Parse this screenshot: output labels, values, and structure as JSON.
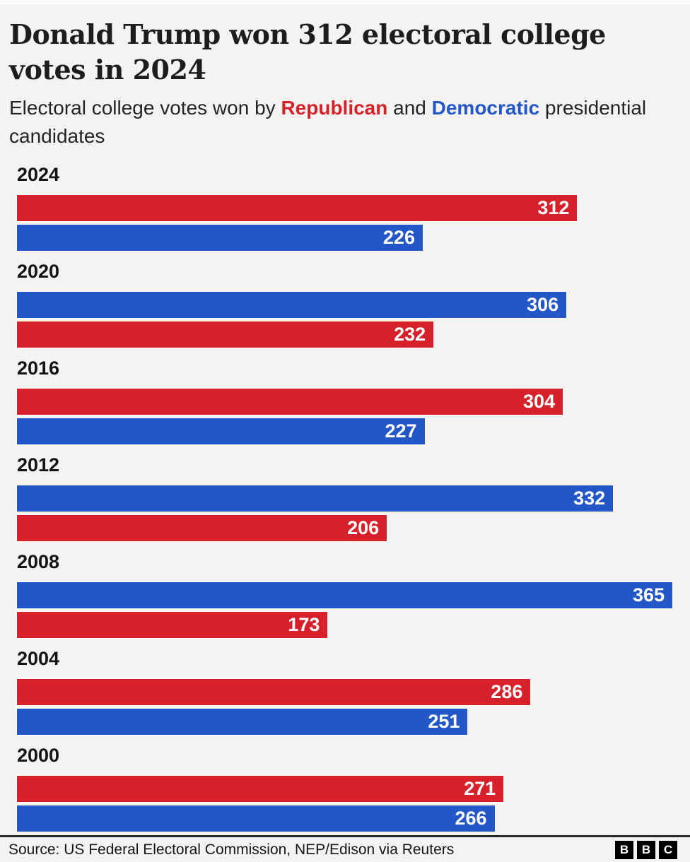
{
  "header": {
    "title_lines": [
      "Donald Trump won 312 electoral college",
      "votes in 2024"
    ],
    "subtitle_parts": [
      {
        "text": "Electoral college votes won by ",
        "accent": null
      },
      {
        "text": "Republican",
        "accent": "republican"
      },
      {
        "text": " and ",
        "accent": null
      },
      {
        "text": "Democratic",
        "accent": "democratic"
      },
      {
        "text": " presidential candidates",
        "accent": null
      }
    ]
  },
  "chart_data": {
    "type": "bar",
    "orientation": "horizontal",
    "title": "Donald Trump won 312 electoral college votes in 2024",
    "subtitle": "Electoral college votes won by Republican and Democratic presidential candidates",
    "value_axis_max": 365,
    "grid": false,
    "legend": "inline-in-subtitle",
    "colors": {
      "republican": "#d6212a",
      "democratic": "#2357c8"
    },
    "groups": [
      {
        "year": "2024",
        "bars": [
          {
            "party": "republican",
            "value": 312
          },
          {
            "party": "democratic",
            "value": 226
          }
        ]
      },
      {
        "year": "2020",
        "bars": [
          {
            "party": "democratic",
            "value": 306
          },
          {
            "party": "republican",
            "value": 232
          }
        ]
      },
      {
        "year": "2016",
        "bars": [
          {
            "party": "republican",
            "value": 304
          },
          {
            "party": "democratic",
            "value": 227
          }
        ]
      },
      {
        "year": "2012",
        "bars": [
          {
            "party": "democratic",
            "value": 332
          },
          {
            "party": "republican",
            "value": 206
          }
        ]
      },
      {
        "year": "2008",
        "bars": [
          {
            "party": "democratic",
            "value": 365
          },
          {
            "party": "republican",
            "value": 173
          }
        ]
      },
      {
        "year": "2004",
        "bars": [
          {
            "party": "republican",
            "value": 286
          },
          {
            "party": "democratic",
            "value": 251
          }
        ]
      },
      {
        "year": "2000",
        "bars": [
          {
            "party": "republican",
            "value": 271
          },
          {
            "party": "democratic",
            "value": 266
          }
        ]
      }
    ]
  },
  "footer": {
    "source": "Source: US Federal Electoral Commission, NEP/Edison via Reuters",
    "logo_blocks": [
      "B",
      "B",
      "C"
    ]
  }
}
